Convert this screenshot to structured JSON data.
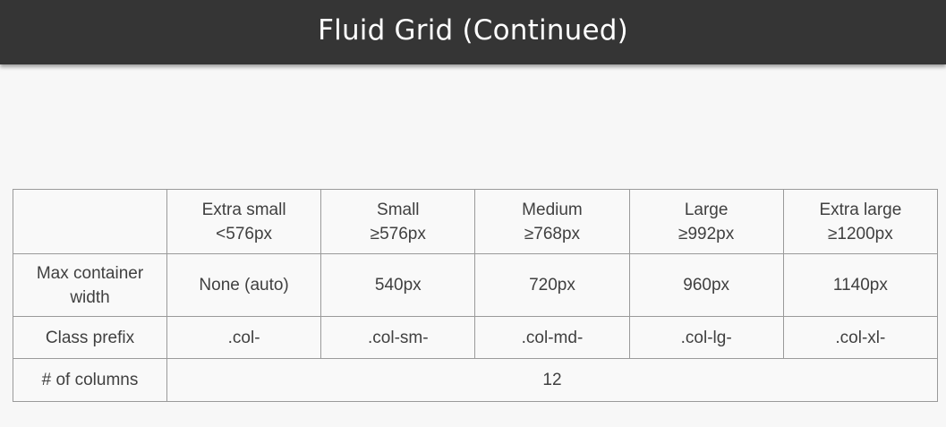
{
  "slide": {
    "title": "Fluid Grid (Continued)"
  },
  "table": {
    "header_blank": "",
    "columns": [
      {
        "name": "Extra small",
        "breakpoint": "<576px"
      },
      {
        "name": "Small",
        "breakpoint": "≥576px"
      },
      {
        "name": "Medium",
        "breakpoint": "≥768px"
      },
      {
        "name": "Large",
        "breakpoint": "≥992px"
      },
      {
        "name": "Extra large",
        "breakpoint": "≥1200px"
      }
    ],
    "max_container_width": {
      "label_line1": "Max container",
      "label_line2": "width",
      "values": [
        "None (auto)",
        "540px",
        "720px",
        "960px",
        "1140px"
      ]
    },
    "class_prefix": {
      "label": "Class prefix",
      "values": [
        ".col-",
        ".col-sm-",
        ".col-md-",
        ".col-lg-",
        ".col-xl-"
      ]
    },
    "num_columns": {
      "label": "# of columns",
      "value": "12"
    }
  }
}
